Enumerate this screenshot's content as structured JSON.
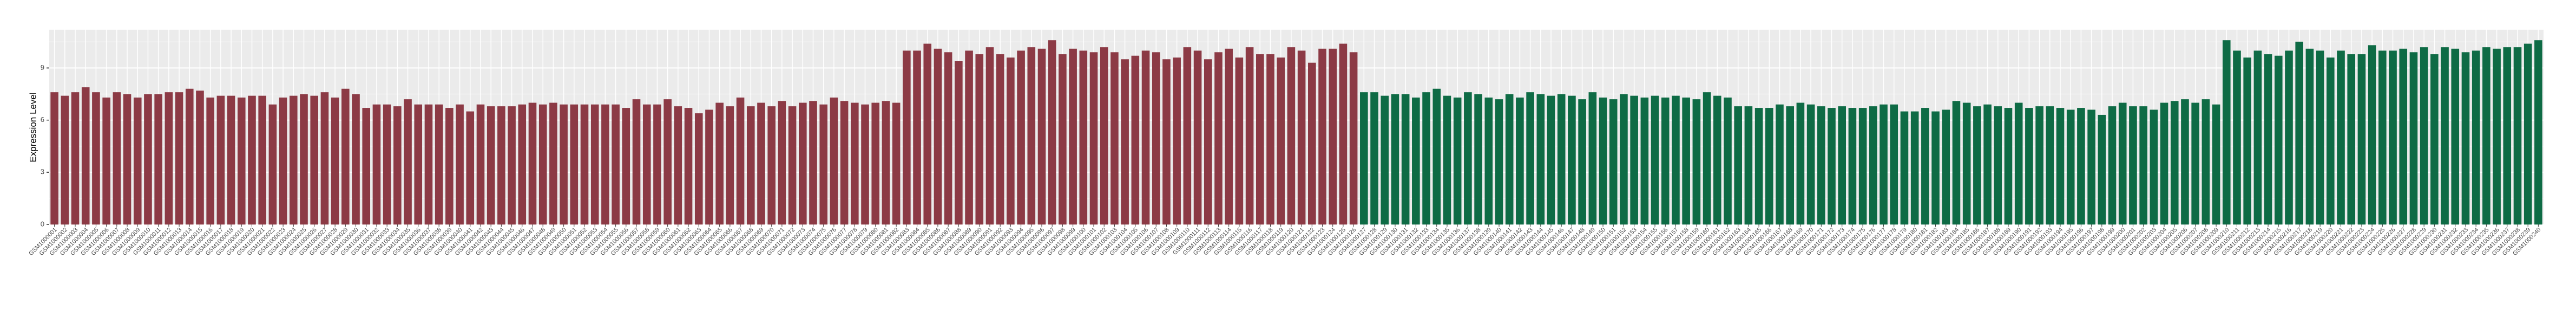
{
  "chart_data": {
    "type": "bar",
    "y_label": "Expression Level",
    "ylim": [
      0,
      11.2
    ],
    "yticks": [
      0,
      3,
      6,
      9
    ],
    "grid": true,
    "categories": [
      "GSM1000001",
      "GSM1000002",
      "GSM1000003",
      "GSM1000004",
      "GSM1000005",
      "GSM1000006",
      "GSM1000007",
      "GSM1000008",
      "GSM1000009",
      "GSM1000010",
      "GSM1000011",
      "GSM1000012",
      "GSM1000013",
      "GSM1000014",
      "GSM1000015",
      "GSM1000016",
      "GSM1000017",
      "GSM1000018",
      "GSM1000019",
      "GSM1000020",
      "GSM1000021",
      "GSM1000022",
      "GSM1000023",
      "GSM1000024",
      "GSM1000025",
      "GSM1000026",
      "GSM1000027",
      "GSM1000028",
      "GSM1000029",
      "GSM1000030",
      "GSM1000031",
      "GSM1000032",
      "GSM1000033",
      "GSM1000034",
      "GSM1000035",
      "GSM1000036",
      "GSM1000037",
      "GSM1000038",
      "GSM1000039",
      "GSM1000040",
      "GSM1000041",
      "GSM1000042",
      "GSM1000043",
      "GSM1000044",
      "GSM1000045",
      "GSM1000046",
      "GSM1000047",
      "GSM1000048",
      "GSM1000049",
      "GSM1000050",
      "GSM1000051",
      "GSM1000052",
      "GSM1000053",
      "GSM1000054",
      "GSM1000055",
      "GSM1000056",
      "GSM1000057",
      "GSM1000058",
      "GSM1000059",
      "GSM1000060",
      "GSM1000061",
      "GSM1000062",
      "GSM1000063",
      "GSM1000064",
      "GSM1000065",
      "GSM1000066",
      "GSM1000067",
      "GSM1000068",
      "GSM1000069",
      "GSM1000070",
      "GSM1000071",
      "GSM1000072",
      "GSM1000073",
      "GSM1000074",
      "GSM1000075",
      "GSM1000076",
      "GSM1000077",
      "GSM1000078",
      "GSM1000079",
      "GSM1000080",
      "GSM1000081",
      "GSM1000082",
      "GSM1000083",
      "GSM1000084",
      "GSM1000085",
      "GSM1000086",
      "GSM1000087",
      "GSM1000088",
      "GSM1000089",
      "GSM1000090",
      "GSM1000091",
      "GSM1000092",
      "GSM1000093",
      "GSM1000094",
      "GSM1000095",
      "GSM1000096",
      "GSM1000097",
      "GSM1000098",
      "GSM1000099",
      "GSM1000100",
      "GSM1000101",
      "GSM1000102",
      "GSM1000103",
      "GSM1000104",
      "GSM1000105",
      "GSM1000106",
      "GSM1000107",
      "GSM1000108",
      "GSM1000109",
      "GSM1000110",
      "GSM1000111",
      "GSM1000112",
      "GSM1000113",
      "GSM1000114",
      "GSM1000115",
      "GSM1000116",
      "GSM1000117",
      "GSM1000118",
      "GSM1000119",
      "GSM1000120",
      "GSM1000121",
      "GSM1000122",
      "GSM1000123",
      "GSM1000124",
      "GSM1000125",
      "GSM1000126",
      "GSM1000127",
      "GSM1000128",
      "GSM1000129",
      "GSM1000130",
      "GSM1000131",
      "GSM1000132",
      "GSM1000133",
      "GSM1000134",
      "GSM1000135",
      "GSM1000136",
      "GSM1000137",
      "GSM1000138",
      "GSM1000139",
      "GSM1000140",
      "GSM1000141",
      "GSM1000142",
      "GSM1000143",
      "GSM1000144",
      "GSM1000145",
      "GSM1000146",
      "GSM1000147",
      "GSM1000148",
      "GSM1000149",
      "GSM1000150",
      "GSM1000151",
      "GSM1000152",
      "GSM1000153",
      "GSM1000154",
      "GSM1000155",
      "GSM1000156",
      "GSM1000157",
      "GSM1000158",
      "GSM1000159",
      "GSM1000160",
      "GSM1000161",
      "GSM1000162",
      "GSM1000163",
      "GSM1000164",
      "GSM1000165",
      "GSM1000166",
      "GSM1000167",
      "GSM1000168",
      "GSM1000169",
      "GSM1000170",
      "GSM1000171",
      "GSM1000172",
      "GSM1000173",
      "GSM1000174",
      "GSM1000175",
      "GSM1000176",
      "GSM1000177",
      "GSM1000178",
      "GSM1000179",
      "GSM1000180",
      "GSM1000181",
      "GSM1000182",
      "GSM1000183",
      "GSM1000184",
      "GSM1000185",
      "GSM1000186",
      "GSM1000187",
      "GSM1000188",
      "GSM1000189",
      "GSM1000190",
      "GSM1000191",
      "GSM1000192",
      "GSM1000193",
      "GSM1000194",
      "GSM1000195",
      "GSM1000196",
      "GSM1000197",
      "GSM1000198",
      "GSM1000199",
      "GSM1000200",
      "GSM1000201",
      "GSM1000202",
      "GSM1000203",
      "GSM1000204",
      "GSM1000205",
      "GSM1000206",
      "GSM1000207",
      "GSM1000208",
      "GSM1000209",
      "GSM1000210",
      "GSM1000211",
      "GSM1000212",
      "GSM1000213",
      "GSM1000214",
      "GSM1000215",
      "GSM1000216",
      "GSM1000217",
      "GSM1000218",
      "GSM1000219",
      "GSM1000220",
      "GSM1000221",
      "GSM1000222",
      "GSM1000223",
      "GSM1000224",
      "GSM1000225",
      "GSM1000226",
      "GSM1000227",
      "GSM1000228",
      "GSM1000229",
      "GSM1000230",
      "GSM1000231",
      "GSM1000232",
      "GSM1000233",
      "GSM1000234",
      "GSM1000235",
      "GSM1000236",
      "GSM1000237",
      "GSM1000238",
      "GSM1000239",
      "GSM1000240"
    ],
    "values": [
      7.6,
      7.4,
      7.6,
      7.9,
      7.6,
      7.3,
      7.6,
      7.5,
      7.3,
      7.5,
      7.5,
      7.6,
      7.6,
      7.8,
      7.7,
      7.3,
      7.4,
      7.4,
      7.3,
      7.4,
      7.4,
      6.9,
      7.3,
      7.4,
      7.5,
      7.4,
      7.6,
      7.3,
      7.8,
      7.5,
      6.7,
      6.9,
      6.9,
      6.8,
      7.2,
      6.9,
      6.9,
      6.9,
      6.7,
      6.9,
      6.5,
      6.9,
      6.8,
      6.8,
      6.8,
      6.9,
      7.0,
      6.9,
      7.0,
      6.9,
      6.9,
      6.9,
      6.9,
      6.9,
      6.9,
      6.7,
      7.2,
      6.9,
      6.9,
      7.2,
      6.8,
      6.7,
      6.4,
      6.6,
      7.0,
      6.8,
      7.3,
      6.8,
      7.0,
      6.8,
      7.1,
      6.8,
      7.0,
      7.1,
      6.9,
      7.3,
      7.1,
      7.0,
      6.9,
      7.0,
      7.1,
      7.0,
      10.0,
      10.0,
      10.4,
      10.1,
      9.9,
      9.4,
      10.0,
      9.8,
      10.2,
      9.8,
      9.6,
      10.0,
      10.2,
      10.1,
      10.6,
      9.8,
      10.1,
      10.0,
      9.9,
      10.2,
      9.9,
      9.5,
      9.7,
      10.0,
      9.9,
      9.5,
      9.6,
      10.2,
      10.0,
      9.5,
      9.9,
      10.1,
      9.6,
      10.2,
      9.8,
      9.8,
      9.6,
      10.2,
      10.0,
      9.3,
      10.1,
      10.1,
      10.4,
      9.9,
      7.6,
      7.6,
      7.4,
      7.5,
      7.5,
      7.3,
      7.6,
      7.8,
      7.4,
      7.3,
      7.6,
      7.5,
      7.3,
      7.2,
      7.5,
      7.3,
      7.6,
      7.5,
      7.4,
      7.5,
      7.4,
      7.2,
      7.6,
      7.3,
      7.2,
      7.5,
      7.4,
      7.3,
      7.4,
      7.3,
      7.4,
      7.3,
      7.2,
      7.6,
      7.4,
      7.3,
      6.8,
      6.8,
      6.7,
      6.7,
      6.9,
      6.8,
      7.0,
      6.9,
      6.8,
      6.7,
      6.8,
      6.7,
      6.7,
      6.8,
      6.9,
      6.9,
      6.5,
      6.5,
      6.7,
      6.5,
      6.6,
      7.1,
      7.0,
      6.8,
      6.9,
      6.8,
      6.7,
      7.0,
      6.7,
      6.8,
      6.8,
      6.7,
      6.6,
      6.7,
      6.6,
      6.3,
      6.8,
      7.0,
      6.8,
      6.8,
      6.6,
      7.0,
      7.1,
      7.2,
      7.0,
      7.2,
      6.9,
      10.6,
      10.0,
      9.6,
      10.0,
      9.8,
      9.7,
      10.0,
      10.5,
      10.1,
      10.0,
      9.6,
      10.0,
      9.8,
      9.8,
      10.3,
      10.0,
      10.0,
      10.1,
      9.9,
      10.2,
      9.8,
      10.2,
      10.1,
      9.9,
      10.0,
      10.2,
      10.1,
      10.2,
      10.2,
      10.4,
      10.6
    ],
    "colors": [
      "#8c3a45",
      "#8c3a45",
      "#8c3a45",
      "#8c3a45",
      "#8c3a45",
      "#8c3a45",
      "#8c3a45",
      "#8c3a45",
      "#8c3a45",
      "#8c3a45",
      "#8c3a45",
      "#8c3a45",
      "#8c3a45",
      "#8c3a45",
      "#8c3a45",
      "#8c3a45",
      "#8c3a45",
      "#8c3a45",
      "#8c3a45",
      "#8c3a45",
      "#8c3a45",
      "#8c3a45",
      "#8c3a45",
      "#8c3a45",
      "#8c3a45",
      "#8c3a45",
      "#8c3a45",
      "#8c3a45",
      "#8c3a45",
      "#8c3a45",
      "#8c3a45",
      "#8c3a45",
      "#8c3a45",
      "#8c3a45",
      "#8c3a45",
      "#8c3a45",
      "#8c3a45",
      "#8c3a45",
      "#8c3a45",
      "#8c3a45",
      "#8c3a45",
      "#8c3a45",
      "#8c3a45",
      "#8c3a45",
      "#8c3a45",
      "#8c3a45",
      "#8c3a45",
      "#8c3a45",
      "#8c3a45",
      "#8c3a45",
      "#8c3a45",
      "#8c3a45",
      "#8c3a45",
      "#8c3a45",
      "#8c3a45",
      "#8c3a45",
      "#8c3a45",
      "#8c3a45",
      "#8c3a45",
      "#8c3a45",
      "#8c3a45",
      "#8c3a45",
      "#8c3a45",
      "#8c3a45",
      "#8c3a45",
      "#8c3a45",
      "#8c3a45",
      "#8c3a45",
      "#8c3a45",
      "#8c3a45",
      "#8c3a45",
      "#8c3a45",
      "#8c3a45",
      "#8c3a45",
      "#8c3a45",
      "#8c3a45",
      "#8c3a45",
      "#8c3a45",
      "#8c3a45",
      "#8c3a45",
      "#8c3a45",
      "#8c3a45",
      "#8c3a45",
      "#8c3a45",
      "#8c3a45",
      "#8c3a45",
      "#8c3a45",
      "#8c3a45",
      "#8c3a45",
      "#8c3a45",
      "#8c3a45",
      "#8c3a45",
      "#8c3a45",
      "#8c3a45",
      "#8c3a45",
      "#8c3a45",
      "#8c3a45",
      "#8c3a45",
      "#8c3a45",
      "#8c3a45",
      "#8c3a45",
      "#8c3a45",
      "#8c3a45",
      "#8c3a45",
      "#8c3a45",
      "#8c3a45",
      "#8c3a45",
      "#8c3a45",
      "#8c3a45",
      "#8c3a45",
      "#8c3a45",
      "#8c3a45",
      "#8c3a45",
      "#8c3a45",
      "#8c3a45",
      "#8c3a45",
      "#8c3a45",
      "#8c3a45",
      "#8c3a45",
      "#8c3a45",
      "#8c3a45",
      "#8c3a45",
      "#8c3a45",
      "#8c3a45",
      "#8c3a45",
      "#8c3a45",
      "#0e6b45",
      "#0e6b45",
      "#0e6b45",
      "#0e6b45",
      "#0e6b45",
      "#0e6b45",
      "#0e6b45",
      "#0e6b45",
      "#0e6b45",
      "#0e6b45",
      "#0e6b45",
      "#0e6b45",
      "#0e6b45",
      "#0e6b45",
      "#0e6b45",
      "#0e6b45",
      "#0e6b45",
      "#0e6b45",
      "#0e6b45",
      "#0e6b45",
      "#0e6b45",
      "#0e6b45",
      "#0e6b45",
      "#0e6b45",
      "#0e6b45",
      "#0e6b45",
      "#0e6b45",
      "#0e6b45",
      "#0e6b45",
      "#0e6b45",
      "#0e6b45",
      "#0e6b45",
      "#0e6b45",
      "#0e6b45",
      "#0e6b45",
      "#0e6b45",
      "#0e6b45",
      "#0e6b45",
      "#0e6b45",
      "#0e6b45",
      "#0e6b45",
      "#0e6b45",
      "#0e6b45",
      "#0e6b45",
      "#0e6b45",
      "#0e6b45",
      "#0e6b45",
      "#0e6b45",
      "#0e6b45",
      "#0e6b45",
      "#0e6b45",
      "#0e6b45",
      "#0e6b45",
      "#0e6b45",
      "#0e6b45",
      "#0e6b45",
      "#0e6b45",
      "#0e6b45",
      "#0e6b45",
      "#0e6b45",
      "#0e6b45",
      "#0e6b45",
      "#0e6b45",
      "#0e6b45",
      "#0e6b45",
      "#0e6b45",
      "#0e6b45",
      "#0e6b45",
      "#0e6b45",
      "#0e6b45",
      "#0e6b45",
      "#0e6b45",
      "#0e6b45",
      "#0e6b45",
      "#0e6b45",
      "#0e6b45",
      "#0e6b45",
      "#0e6b45",
      "#0e6b45",
      "#0e6b45",
      "#0e6b45",
      "#0e6b45",
      "#0e6b45",
      "#0e6b45",
      "#0e6b45",
      "#0e6b45",
      "#0e6b45",
      "#0e6b45",
      "#0e6b45",
      "#0e6b45",
      "#0e6b45",
      "#0e6b45",
      "#0e6b45",
      "#0e6b45",
      "#0e6b45",
      "#0e6b45",
      "#0e6b45",
      "#0e6b45",
      "#0e6b45",
      "#0e6b45",
      "#0e6b45",
      "#0e6b45",
      "#0e6b45",
      "#0e6b45",
      "#0e6b45",
      "#0e6b45",
      "#0e6b45",
      "#0e6b45",
      "#0e6b45",
      "#0e6b45",
      "#0e6b45",
      "#0e6b45",
      "#0e6b45",
      "#0e6b45",
      "#0e6b45",
      "#0e6b45"
    ]
  }
}
